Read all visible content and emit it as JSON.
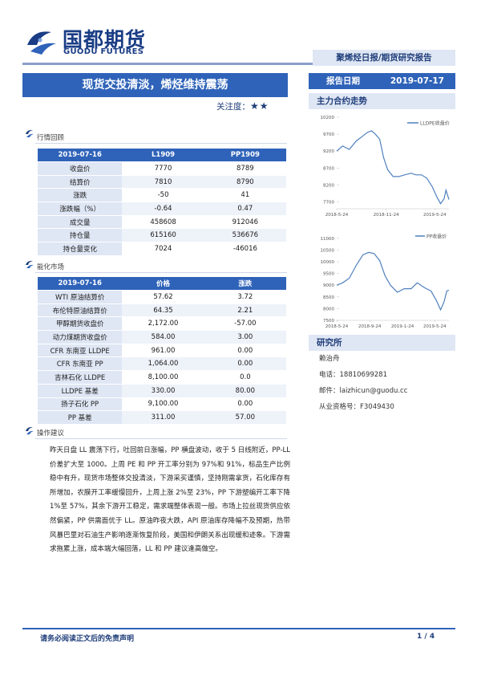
{
  "header": {
    "company_cn": "国都期货",
    "company_en": "GUODU FUTURES",
    "report_type": "聚烯烃日报/期货研究报告",
    "report_date_label": "报告日期",
    "report_date": "2019-07-17",
    "title": "现货交投清淡，烯烃维持震荡",
    "attention_label": "关注度：",
    "attention_stars": "★★"
  },
  "market_review": {
    "section_label": "行情回顾",
    "columns": [
      "2019-07-16",
      "L1909",
      "PP1909"
    ],
    "rows": [
      {
        "label": "收盘价",
        "l": "7770",
        "pp": "8789"
      },
      {
        "label": "结算价",
        "l": "7810",
        "pp": "8790"
      },
      {
        "label": "涨跌",
        "l": "-50",
        "pp": "41"
      },
      {
        "label": "涨跌幅（%）",
        "l": "-0.64",
        "pp": "0.47"
      },
      {
        "label": "成交量",
        "l": "458608",
        "pp": "912046"
      },
      {
        "label": "持仓量",
        "l": "615160",
        "pp": "536676"
      },
      {
        "label": "持仓量变化",
        "l": "7024",
        "pp": "-46016"
      }
    ]
  },
  "energy_market": {
    "section_label": "能化市场",
    "columns": [
      "2019-07-16",
      "价格",
      "涨跌"
    ],
    "rows": [
      {
        "label": "WTI 原油结算价",
        "price": "57.62",
        "chg": "3.72"
      },
      {
        "label": "布伦特原油结算价",
        "price": "64.35",
        "chg": "2.21"
      },
      {
        "label": "甲醇期货收盘价",
        "price": "2,172.00",
        "chg": "-57.00"
      },
      {
        "label": "动力煤期货收盘价",
        "price": "584.00",
        "chg": "3.00"
      },
      {
        "label": "CFR 东南亚 LLDPE",
        "price": "961.00",
        "chg": "0.00"
      },
      {
        "label": "CFR 东南亚 PP",
        "price": "1,064.00",
        "chg": "0.00"
      },
      {
        "label": "吉林石化 LLDPE",
        "price": "8,100.00",
        "chg": "0.0"
      },
      {
        "label": "LLDPE 基差",
        "price": "330.00",
        "chg": "80.00"
      },
      {
        "label": "扬子石化 PP",
        "price": "9,100.00",
        "chg": "0.00"
      },
      {
        "label": "PP 基差",
        "price": "311.00",
        "chg": "57.00"
      }
    ]
  },
  "advice": {
    "section_label": "操作建议",
    "text": "昨天日盘 LL 震荡下行，吐回前日涨幅，PP 横盘波动，收于 5 日线附近，PP-LL 价差扩大至 1000。上周 PE 和 PP 开工率分别为 97%和 91%，标品生产比例稳中有升，现货市场整体交投清淡，下游采买谨慎，坚持刚需拿货，石化库存有所增加，农膜开工率缓慢回升，上周上涨 2%至 23%，PP 下游塑编开工率下降 1%至 57%，其余下游开工稳定，需求端整体表现一般。市场上拉丝现货供应依然偏紧，PP 供需面优于 LL。原油昨夜大跌，API 原油库存降幅不及预期，热带风暴巴里对石油生产影响逐渐恢复阶段，美国和伊朗关系出现缓和迹象。下游需求拖累上涨，成本端大幅回落，LL 和 PP 建议逢高做空。"
  },
  "sidebar": {
    "chart_section": "主力合约走势",
    "research_section": "研究所",
    "analyst": "赖治舟",
    "phone": "电话：18810699281",
    "email": "邮件：laizhicun@guodu.cc",
    "qualification": "从业资格号：F3049430"
  },
  "chart_data": [
    {
      "type": "line",
      "series": [
        {
          "name": "LLDPE收盘价",
          "color": "#4f81bd"
        }
      ],
      "ylim": [
        7500,
        10200
      ],
      "yticks": [
        "10200",
        "9700",
        "9200",
        "8700",
        "8200",
        "7700"
      ],
      "xticks": [
        "2018-5-24",
        "2018-11-24",
        "2019-5-24"
      ],
      "x": [
        "2018-05-24",
        "2018-06-15",
        "2018-07-10",
        "2018-08-05",
        "2018-08-30",
        "2018-09-15",
        "2018-10-01",
        "2018-10-15",
        "2018-10-31",
        "2018-11-15",
        "2018-11-30",
        "2018-12-20",
        "2019-01-10",
        "2019-02-01",
        "2019-02-25",
        "2019-03-15",
        "2019-04-05",
        "2019-04-25",
        "2019-05-15",
        "2019-06-01",
        "2019-06-15",
        "2019-06-28",
        "2019-07-05",
        "2019-07-16"
      ],
      "y": [
        9200,
        9350,
        9250,
        9500,
        9650,
        9750,
        9800,
        9700,
        9550,
        9000,
        8650,
        8450,
        8450,
        8500,
        8550,
        8500,
        8500,
        8400,
        8150,
        7850,
        7650,
        7800,
        8050,
        7770
      ]
    },
    {
      "type": "line",
      "series": [
        {
          "name": "PP收盘价",
          "color": "#4f81bd"
        }
      ],
      "ylim": [
        7500,
        11200
      ],
      "yticks": [
        "11000",
        "10500",
        "10000",
        "9500",
        "9000",
        "8500",
        "8000",
        "7500"
      ],
      "xticks": [
        "2018-5-24",
        "2018-9-24",
        "2019-1-24",
        "2019-5-24"
      ],
      "x": [
        "2018-05-24",
        "2018-06-15",
        "2018-07-10",
        "2018-08-05",
        "2018-08-30",
        "2018-09-20",
        "2018-10-10",
        "2018-10-31",
        "2018-11-20",
        "2018-12-10",
        "2019-01-05",
        "2019-01-30",
        "2019-02-25",
        "2019-03-20",
        "2019-04-15",
        "2019-05-10",
        "2019-05-30",
        "2019-06-15",
        "2019-06-28",
        "2019-07-08",
        "2019-07-16"
      ],
      "y": [
        9000,
        9100,
        9300,
        9850,
        10300,
        10400,
        10350,
        10050,
        9400,
        9000,
        8700,
        8850,
        8850,
        9100,
        8900,
        8750,
        8350,
        7950,
        8300,
        8750,
        8789
      ]
    }
  ],
  "footer": {
    "disclaimer": "请务必阅读正文后的免责声明",
    "page": "1 / 4"
  }
}
